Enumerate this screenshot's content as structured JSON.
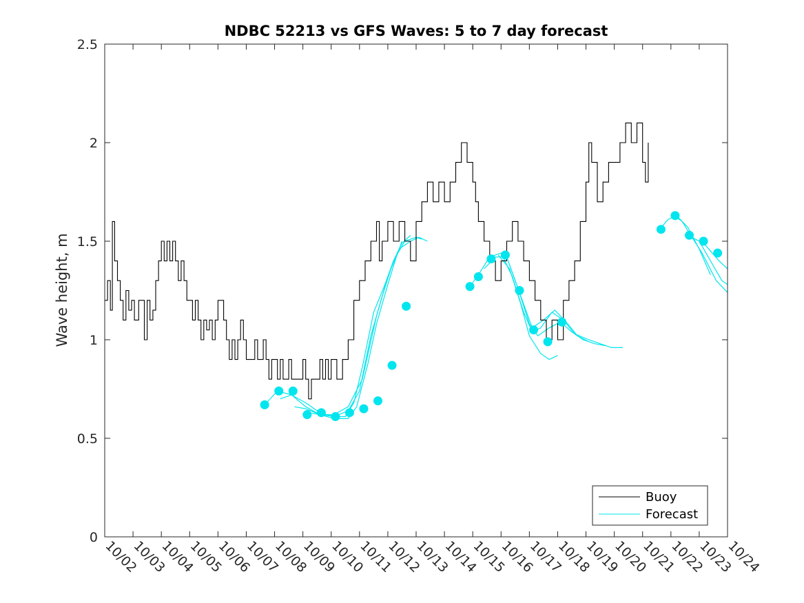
{
  "chart_data": {
    "type": "line",
    "title": "NDBC 52213 vs GFS Waves: 5 to 7 day forecast",
    "xlabel": "",
    "ylabel": "Wave height, m",
    "ylim": [
      0,
      2.5
    ],
    "yticks": [
      0,
      0.5,
      1,
      1.5,
      2,
      2.5
    ],
    "ytick_labels": [
      "0",
      "0.5",
      "1",
      "1.5",
      "2",
      "2.5"
    ],
    "xlim": [
      0,
      22
    ],
    "xtick_labels": [
      "10/02",
      "10/03",
      "10/04",
      "10/05",
      "10/06",
      "10/07",
      "10/08",
      "10/09",
      "10/10",
      "10/11",
      "10/12",
      "10/13",
      "10/14",
      "10/15",
      "10/16",
      "10/17",
      "10/18",
      "10/19",
      "10/20",
      "10/21",
      "10/22",
      "10/23",
      "10/24"
    ],
    "x_units": "days since 10/02 00:00",
    "colors": {
      "buoy": "#000000",
      "forecast": "#00e5ee"
    },
    "legend": {
      "position": "bottom-right",
      "entries": [
        "Buoy",
        "Forecast"
      ]
    },
    "series": [
      {
        "name": "Buoy",
        "kind": "line",
        "points": [
          [
            0.0,
            1.2
          ],
          [
            0.1,
            1.3
          ],
          [
            0.2,
            1.15
          ],
          [
            0.27,
            1.6
          ],
          [
            0.35,
            1.4
          ],
          [
            0.45,
            1.3
          ],
          [
            0.55,
            1.2
          ],
          [
            0.65,
            1.1
          ],
          [
            0.75,
            1.25
          ],
          [
            0.85,
            1.15
          ],
          [
            0.95,
            1.2
          ],
          [
            1.05,
            1.1
          ],
          [
            1.2,
            1.2
          ],
          [
            1.4,
            1.0
          ],
          [
            1.5,
            1.2
          ],
          [
            1.6,
            1.1
          ],
          [
            1.7,
            1.15
          ],
          [
            1.8,
            1.3
          ],
          [
            1.9,
            1.4
          ],
          [
            2.0,
            1.5
          ],
          [
            2.1,
            1.4
          ],
          [
            2.2,
            1.5
          ],
          [
            2.3,
            1.4
          ],
          [
            2.4,
            1.5
          ],
          [
            2.5,
            1.4
          ],
          [
            2.6,
            1.3
          ],
          [
            2.7,
            1.4
          ],
          [
            2.8,
            1.3
          ],
          [
            2.9,
            1.2
          ],
          [
            3.0,
            1.2
          ],
          [
            3.1,
            1.1
          ],
          [
            3.2,
            1.2
          ],
          [
            3.3,
            1.1
          ],
          [
            3.4,
            1.0
          ],
          [
            3.5,
            1.1
          ],
          [
            3.6,
            1.05
          ],
          [
            3.7,
            1.1
          ],
          [
            3.8,
            1.0
          ],
          [
            3.9,
            1.1
          ],
          [
            4.0,
            1.2
          ],
          [
            4.1,
            1.2
          ],
          [
            4.2,
            1.1
          ],
          [
            4.3,
            1.0
          ],
          [
            4.4,
            0.9
          ],
          [
            4.5,
            1.0
          ],
          [
            4.6,
            0.9
          ],
          [
            4.7,
            1.0
          ],
          [
            4.8,
            1.1
          ],
          [
            4.9,
            1.0
          ],
          [
            5.0,
            0.9
          ],
          [
            5.2,
            0.9
          ],
          [
            5.3,
            1.0
          ],
          [
            5.4,
            0.9
          ],
          [
            5.5,
            0.9
          ],
          [
            5.6,
            1.0
          ],
          [
            5.7,
            0.9
          ],
          [
            5.8,
            0.8
          ],
          [
            5.9,
            0.9
          ],
          [
            6.0,
            0.9
          ],
          [
            6.1,
            0.8
          ],
          [
            6.2,
            0.9
          ],
          [
            6.3,
            0.8
          ],
          [
            6.5,
            0.9
          ],
          [
            6.6,
            0.8
          ],
          [
            6.8,
            0.8
          ],
          [
            7.0,
            0.9
          ],
          [
            7.1,
            0.8
          ],
          [
            7.2,
            0.7
          ],
          [
            7.3,
            0.8
          ],
          [
            7.5,
            0.8
          ],
          [
            7.6,
            0.9
          ],
          [
            7.7,
            0.8
          ],
          [
            7.8,
            0.9
          ],
          [
            7.9,
            0.8
          ],
          [
            8.0,
            0.9
          ],
          [
            8.2,
            0.8
          ],
          [
            8.4,
            0.9
          ],
          [
            8.6,
            1.0
          ],
          [
            8.8,
            1.2
          ],
          [
            9.0,
            1.3
          ],
          [
            9.2,
            1.4
          ],
          [
            9.4,
            1.5
          ],
          [
            9.6,
            1.6
          ],
          [
            9.7,
            1.4
          ],
          [
            9.8,
            1.5
          ],
          [
            10.0,
            1.6
          ],
          [
            10.2,
            1.5
          ],
          [
            10.4,
            1.6
          ],
          [
            10.6,
            1.5
          ],
          [
            10.8,
            1.4
          ],
          [
            11.0,
            1.6
          ],
          [
            11.2,
            1.7
          ],
          [
            11.4,
            1.8
          ],
          [
            11.6,
            1.7
          ],
          [
            11.8,
            1.8
          ],
          [
            12.0,
            1.7
          ],
          [
            12.2,
            1.8
          ],
          [
            12.4,
            1.9
          ],
          [
            12.6,
            2.0
          ],
          [
            12.8,
            1.9
          ],
          [
            13.0,
            1.8
          ],
          [
            13.1,
            1.7
          ],
          [
            13.2,
            1.6
          ],
          [
            13.4,
            1.5
          ],
          [
            13.6,
            1.4
          ],
          [
            13.8,
            1.3
          ],
          [
            14.0,
            1.4
          ],
          [
            14.2,
            1.5
          ],
          [
            14.4,
            1.6
          ],
          [
            14.6,
            1.5
          ],
          [
            14.8,
            1.4
          ],
          [
            15.0,
            1.3
          ],
          [
            15.2,
            1.2
          ],
          [
            15.4,
            1.1
          ],
          [
            15.6,
            1.0
          ],
          [
            15.8,
            1.1
          ],
          [
            16.0,
            1.0
          ],
          [
            16.2,
            1.2
          ],
          [
            16.4,
            1.3
          ],
          [
            16.6,
            1.4
          ],
          [
            16.8,
            1.6
          ],
          [
            17.0,
            1.8
          ],
          [
            17.1,
            2.0
          ],
          [
            17.2,
            1.9
          ],
          [
            17.4,
            1.7
          ],
          [
            17.6,
            1.8
          ],
          [
            17.8,
            1.9
          ],
          [
            18.0,
            1.9
          ],
          [
            18.2,
            2.0
          ],
          [
            18.4,
            2.1
          ],
          [
            18.6,
            2.0
          ],
          [
            18.8,
            2.1
          ],
          [
            19.0,
            1.9
          ],
          [
            19.1,
            1.8
          ],
          [
            19.2,
            2.0
          ]
        ]
      },
      {
        "name": "Forecast",
        "kind": "line-group",
        "lines": [
          [
            [
              5.65,
              0.67
            ],
            [
              6.1,
              0.74
            ],
            [
              6.6,
              0.72
            ],
            [
              7.1,
              0.66
            ],
            [
              7.6,
              0.62
            ],
            [
              8.1,
              0.62
            ],
            [
              8.6,
              0.66
            ],
            [
              9.1,
              0.8
            ],
            [
              9.6,
              1.12
            ],
            [
              10.0,
              1.32
            ],
            [
              10.4,
              1.46
            ],
            [
              10.8,
              1.5
            ],
            [
              11.1,
              1.52
            ],
            [
              11.4,
              1.5
            ]
          ],
          [
            [
              6.2,
              0.7
            ],
            [
              6.6,
              0.72
            ],
            [
              7.1,
              0.68
            ],
            [
              7.6,
              0.63
            ],
            [
              8.1,
              0.61
            ],
            [
              8.6,
              0.64
            ],
            [
              9.0,
              0.74
            ],
            [
              9.4,
              1.02
            ],
            [
              9.8,
              1.22
            ],
            [
              10.2,
              1.4
            ],
            [
              10.6,
              1.5
            ],
            [
              11.0,
              1.52
            ],
            [
              11.2,
              1.51
            ]
          ],
          [
            [
              6.7,
              0.66
            ],
            [
              7.1,
              0.65
            ],
            [
              7.6,
              0.62
            ],
            [
              8.1,
              0.61
            ],
            [
              8.5,
              0.61
            ],
            [
              8.8,
              0.68
            ],
            [
              9.1,
              0.86
            ],
            [
              9.5,
              1.14
            ],
            [
              9.9,
              1.28
            ],
            [
              10.2,
              1.4
            ],
            [
              10.5,
              1.49
            ],
            [
              10.8,
              1.53
            ]
          ],
          [
            [
              7.2,
              0.63
            ],
            [
              7.6,
              0.62
            ],
            [
              8.1,
              0.6
            ],
            [
              8.6,
              0.6
            ],
            [
              8.9,
              0.66
            ],
            [
              9.3,
              0.88
            ],
            [
              9.6,
              1.08
            ],
            [
              10.0,
              1.28
            ],
            [
              10.3,
              1.42
            ],
            [
              10.5,
              1.5
            ]
          ],
          [
            [
              12.9,
              1.27
            ],
            [
              13.2,
              1.33
            ],
            [
              13.6,
              1.42
            ],
            [
              14.0,
              1.44
            ],
            [
              14.4,
              1.32
            ],
            [
              14.8,
              1.14
            ],
            [
              15.1,
              1.04
            ],
            [
              15.4,
              1.06
            ],
            [
              15.8,
              1.14
            ],
            [
              16.2,
              1.1
            ],
            [
              16.6,
              1.03
            ],
            [
              17.1,
              1.0
            ],
            [
              17.5,
              0.98
            ],
            [
              17.9,
              0.96
            ],
            [
              18.3,
              0.96
            ]
          ],
          [
            [
              13.4,
              1.36
            ],
            [
              13.8,
              1.42
            ],
            [
              14.2,
              1.42
            ],
            [
              14.6,
              1.26
            ],
            [
              15.0,
              1.08
            ],
            [
              15.3,
              1.02
            ],
            [
              15.7,
              1.06
            ],
            [
              16.1,
              1.09
            ],
            [
              16.5,
              1.04
            ],
            [
              16.9,
              1.0
            ],
            [
              17.3,
              0.98
            ],
            [
              17.7,
              0.97
            ]
          ],
          [
            [
              13.9,
              1.43
            ],
            [
              14.3,
              1.36
            ],
            [
              14.7,
              1.18
            ],
            [
              15.0,
              1.02
            ],
            [
              15.4,
              0.93
            ],
            [
              15.7,
              0.9
            ],
            [
              16.0,
              0.92
            ]
          ],
          [
            [
              14.3,
              1.38
            ],
            [
              14.7,
              1.22
            ],
            [
              15.1,
              1.06
            ],
            [
              15.5,
              1.1
            ],
            [
              15.9,
              1.15
            ],
            [
              16.3,
              1.09
            ],
            [
              16.7,
              1.02
            ],
            [
              17.1,
              0.99
            ]
          ],
          [
            [
              19.6,
              1.56
            ],
            [
              19.9,
              1.61
            ],
            [
              20.2,
              1.63
            ],
            [
              20.6,
              1.57
            ],
            [
              21.0,
              1.46
            ],
            [
              21.4,
              1.33
            ]
          ],
          [
            [
              20.1,
              1.63
            ],
            [
              20.4,
              1.6
            ],
            [
              20.7,
              1.53
            ],
            [
              21.1,
              1.44
            ],
            [
              21.6,
              1.3
            ],
            [
              22.0,
              1.24
            ]
          ],
          [
            [
              20.6,
              1.53
            ],
            [
              21.0,
              1.5
            ],
            [
              21.4,
              1.4
            ],
            [
              21.8,
              1.3
            ],
            [
              22.0,
              1.28
            ]
          ],
          [
            [
              21.1,
              1.5
            ],
            [
              21.4,
              1.45
            ],
            [
              21.7,
              1.4
            ],
            [
              22.0,
              1.36
            ]
          ]
        ],
        "markers": [
          [
            5.65,
            0.67
          ],
          [
            6.15,
            0.74
          ],
          [
            6.65,
            0.74
          ],
          [
            7.15,
            0.62
          ],
          [
            7.65,
            0.63
          ],
          [
            8.15,
            0.61
          ],
          [
            8.65,
            0.63
          ],
          [
            9.15,
            0.65
          ],
          [
            9.65,
            0.69
          ],
          [
            10.15,
            0.87
          ],
          [
            10.65,
            1.17
          ],
          [
            12.9,
            1.27
          ],
          [
            13.2,
            1.32
          ],
          [
            13.65,
            1.41
          ],
          [
            14.15,
            1.43
          ],
          [
            14.65,
            1.25
          ],
          [
            15.15,
            1.05
          ],
          [
            15.65,
            0.99
          ],
          [
            16.15,
            1.09
          ],
          [
            19.65,
            1.56
          ],
          [
            20.15,
            1.63
          ],
          [
            20.65,
            1.53
          ],
          [
            21.15,
            1.5
          ],
          [
            21.65,
            1.44
          ]
        ]
      }
    ]
  }
}
